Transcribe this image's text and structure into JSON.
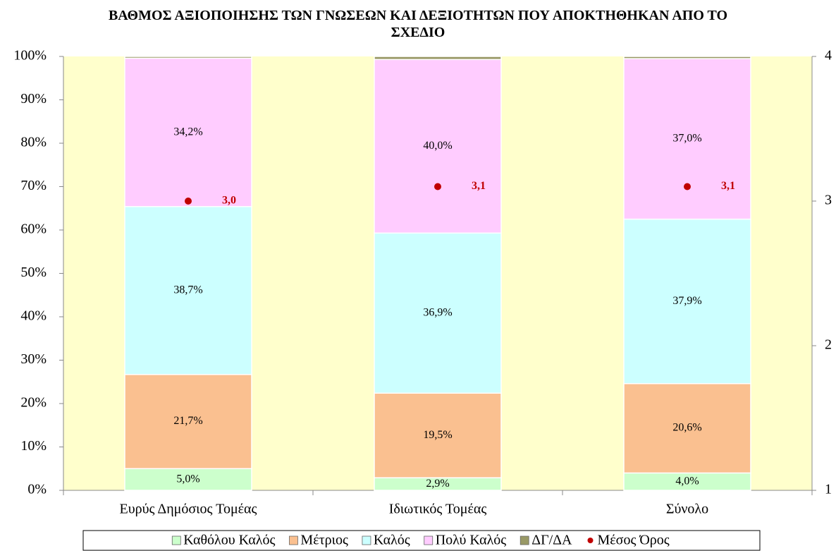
{
  "chart_data": {
    "type": "bar",
    "stacked": true,
    "title": "ΒΑΘΜΟΣ ΑΞΙΟΠΟΙΗΣΗΣ ΤΩΝ ΓΝΩΣΕΩΝ ΚΑΙ ΔΕΞΙΟΤΗΤΩΝ ΠΟΥ ΑΠΟΚΤΗΘΗΚΑΝ ΑΠΟ ΤΟ ΣΧΕΔΙΟ",
    "categories": [
      "Ευρύς Δημόσιος Τομέας",
      "Ιδιωτικός Τομέας",
      "Σύνολο"
    ],
    "series": [
      {
        "name": "Καθόλου Καλός",
        "color": "#ccffcc",
        "values": [
          5.0,
          2.9,
          4.0
        ],
        "value_labels": [
          "5,0%",
          "2,9%",
          "4,0%"
        ]
      },
      {
        "name": "Μέτριος",
        "color": "#fac090",
        "values": [
          21.7,
          19.5,
          20.6
        ],
        "value_labels": [
          "21,7%",
          "19,5%",
          "20,6%"
        ]
      },
      {
        "name": "Καλός",
        "color": "#ccffff",
        "values": [
          38.7,
          36.9,
          37.9
        ],
        "value_labels": [
          "38,7%",
          "36,9%",
          "37,9%"
        ]
      },
      {
        "name": "Πολύ Καλός",
        "color": "#ffccff",
        "values": [
          34.2,
          40.0,
          37.0
        ],
        "value_labels": [
          "34,2%",
          "40,0%",
          "37,0%"
        ]
      },
      {
        "name": "ΔΓ/ΔΑ",
        "color": "#999966",
        "values": [
          0.4,
          0.7,
          0.5
        ]
      },
      {
        "name": "Μέσος Όρος",
        "type": "scatter",
        "axis": "y2",
        "color": "#c00000",
        "values": [
          3.0,
          3.1,
          3.1
        ],
        "value_labels": [
          "3,0",
          "3,1",
          "3,1"
        ]
      }
    ],
    "ylim": [
      0,
      100
    ],
    "yticks": [
      {
        "value": 0,
        "label": "0%"
      },
      {
        "value": 10,
        "label": "10%"
      },
      {
        "value": 20,
        "label": "20%"
      },
      {
        "value": 30,
        "label": "30%"
      },
      {
        "value": 40,
        "label": "40%"
      },
      {
        "value": 50,
        "label": "50%"
      },
      {
        "value": 60,
        "label": "60%"
      },
      {
        "value": 70,
        "label": "70%"
      },
      {
        "value": 80,
        "label": "80%"
      },
      {
        "value": 90,
        "label": "90%"
      },
      {
        "value": 100,
        "label": "100%"
      }
    ],
    "y2lim": [
      1,
      4
    ],
    "y2ticks": [
      1,
      2,
      3,
      4
    ],
    "plot_background": "#ffffcc",
    "legend": "bottom"
  }
}
